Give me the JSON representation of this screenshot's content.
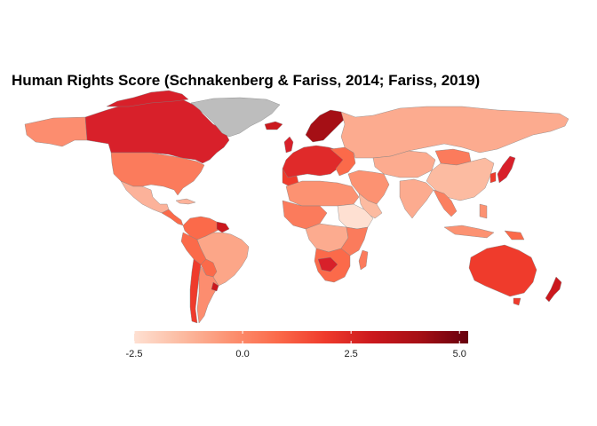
{
  "title": "Human Rights Score (Schnakenberg & Fariss, 2014; Fariss, 2019)",
  "legend": {
    "min": -2.5,
    "max": 5.2,
    "ticks": [
      {
        "value": -2.5,
        "label": "-2.5"
      },
      {
        "value": 0.0,
        "label": "0.0"
      },
      {
        "value": 2.5,
        "label": "2.5"
      },
      {
        "value": 5.0,
        "label": "5.0"
      }
    ],
    "gradient_colors": [
      "#fee0d2",
      "#fcbba1",
      "#fc9272",
      "#fb6a4a",
      "#ef3b2c",
      "#cb181d",
      "#a50f15",
      "#67000d"
    ]
  },
  "colors": {
    "no_data": "#bdbdbd",
    "border": "#808080",
    "background": "#ffffff"
  }
}
